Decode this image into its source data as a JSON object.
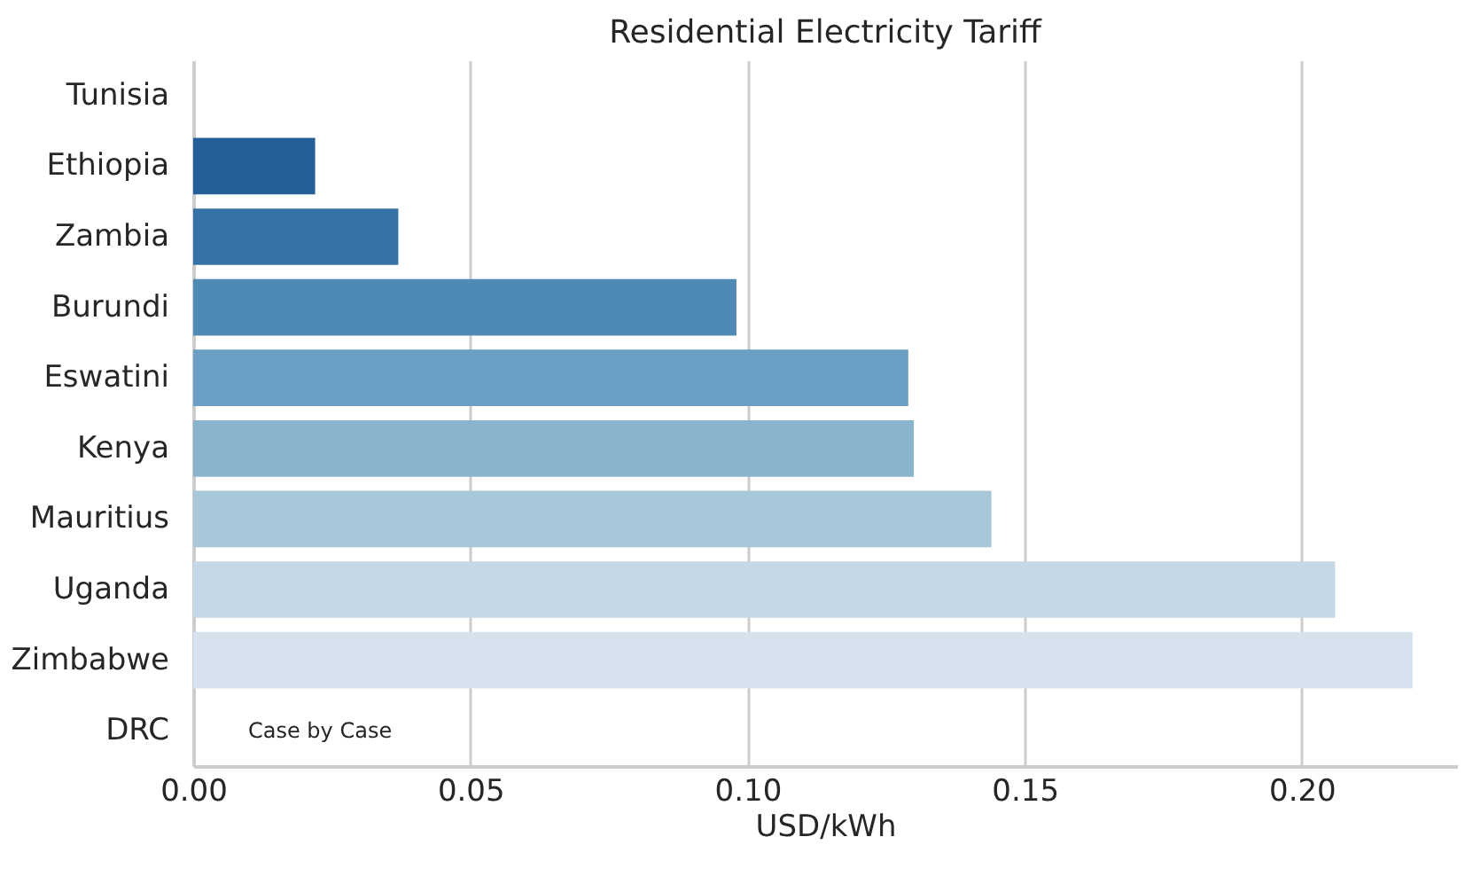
{
  "chart_data": {
    "type": "bar",
    "orientation": "horizontal",
    "title": "Residential Electricity Tariff",
    "xlabel": "USD/kWh",
    "categories": [
      "Tunisia",
      "Ethiopia",
      "Zambia",
      "Burundi",
      "Eswatini",
      "Kenya",
      "Mauritius",
      "Uganda",
      "Zimbabwe",
      "DRC"
    ],
    "values": [
      null,
      0.022,
      0.037,
      0.098,
      0.129,
      0.13,
      0.144,
      0.206,
      0.22,
      null
    ],
    "colors": [
      null,
      "#255f99",
      "#3573a7",
      "#4f8ab5",
      "#6a9fc3",
      "#89b4cd",
      "#a8c8da",
      "#c5d8e7",
      "#d6e3ef",
      null
    ],
    "xlim": [
      0,
      0.228
    ],
    "xticks": [
      {
        "value": 0,
        "label": "0.00"
      },
      {
        "value": 0.05,
        "label": "0.05"
      },
      {
        "value": 0.1,
        "label": "0.10"
      },
      {
        "value": 0.15,
        "label": "0.15"
      },
      {
        "value": 0.2,
        "label": "0.20"
      }
    ],
    "grid": "x",
    "annotations": [
      "Case by Case"
    ]
  }
}
